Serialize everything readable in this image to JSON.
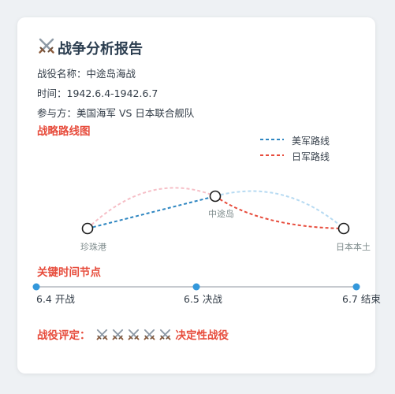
{
  "header": {
    "icon": "crossed-swords-icon",
    "title": "战争分析报告"
  },
  "info": {
    "battle": "战役名称：中途岛海战",
    "time": "时间：1942.6.4-1942.6.7",
    "parties": "参与方：美国海军 VS 日本联合舰队"
  },
  "map": {
    "heading": "战略路线图",
    "legend": [
      {
        "label": "美军路线",
        "color": "#2e86c1"
      },
      {
        "label": "日军路线",
        "color": "#e74c3c"
      }
    ],
    "nodes": {
      "pearl": "珍珠港",
      "midway": "中途岛",
      "japan": "日本本土"
    }
  },
  "timeline": {
    "heading": "关键时间节点",
    "points": [
      {
        "label": "6.4 开战"
      },
      {
        "label": "6.5 决战"
      },
      {
        "label": "6.7 结束"
      }
    ],
    "color": "#3498db"
  },
  "rating": {
    "label": "战役评定：",
    "swords": 5,
    "verdict": "决定性战役"
  }
}
